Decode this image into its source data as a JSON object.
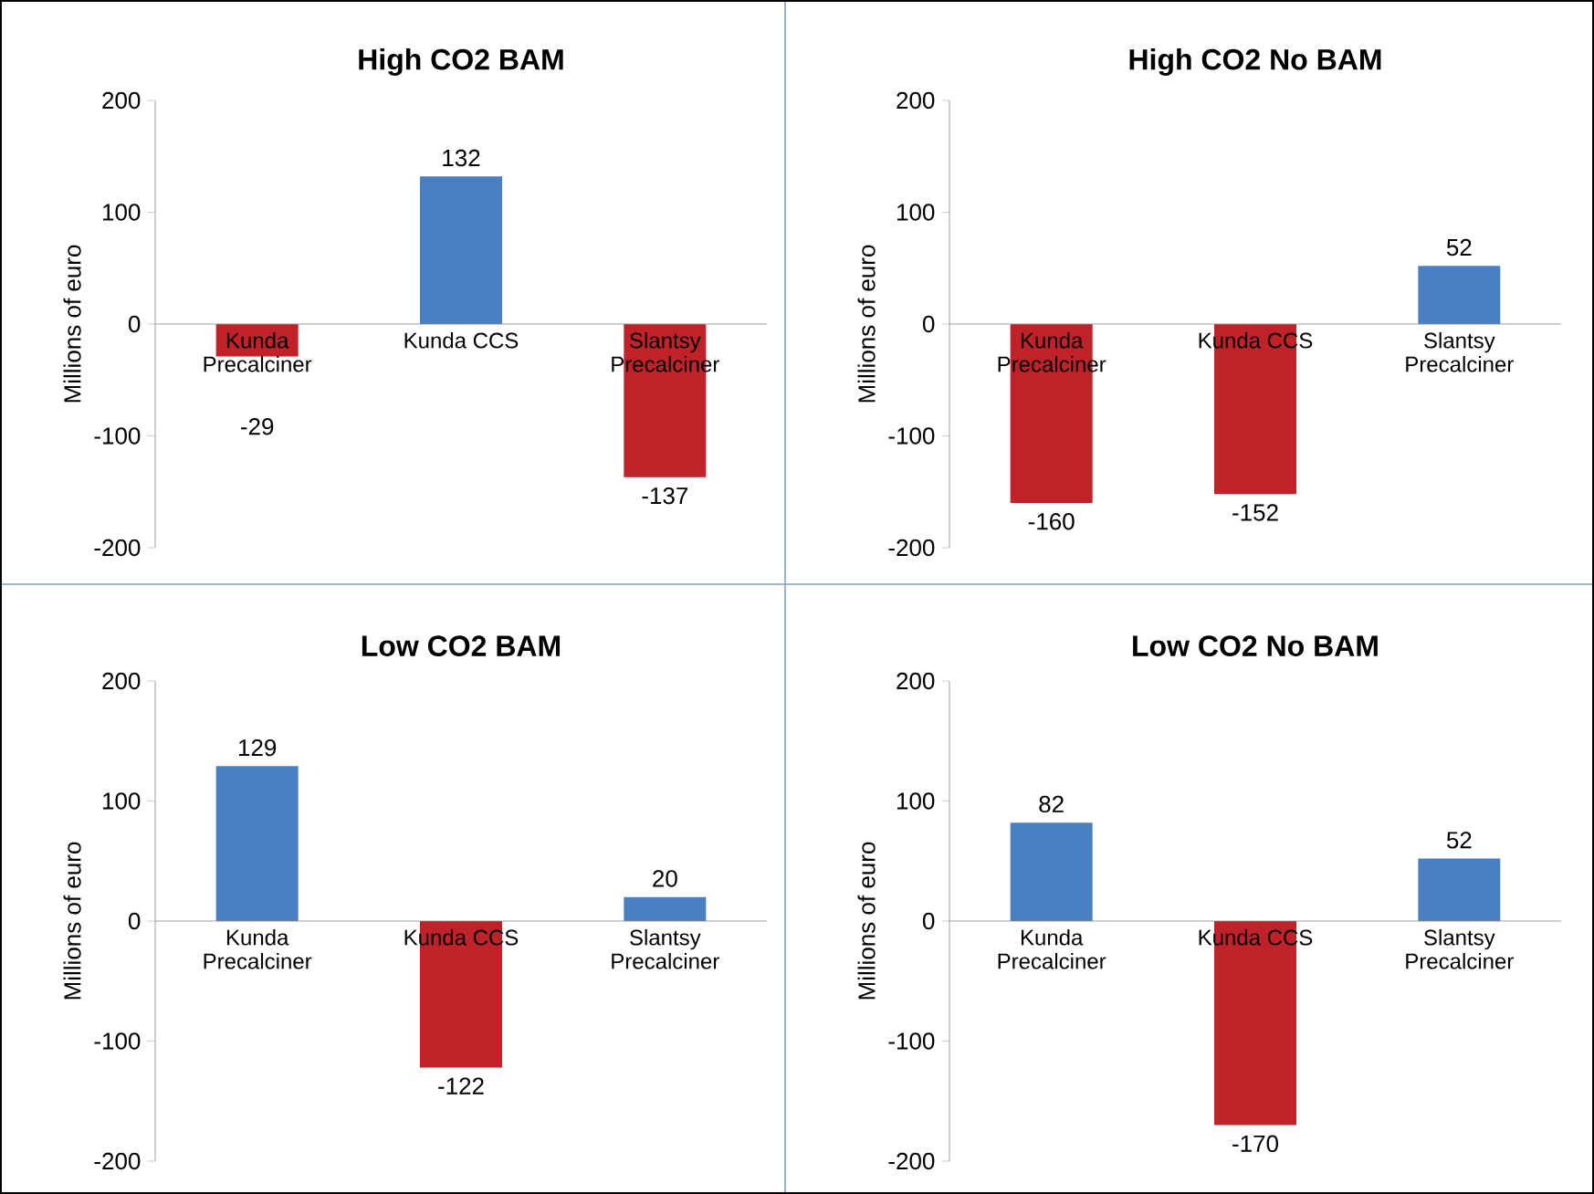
{
  "chart_data": [
    {
      "type": "bar",
      "title": "High CO2 BAM",
      "ylabel": "Millions of euro",
      "categories": [
        "Kunda Precalciner",
        "Kunda CCS",
        "Slantsy Precalciner"
      ],
      "values": [
        -29,
        132,
        -137
      ],
      "colors": [
        "#c0222a",
        "#4a7fc1",
        "#c0222a"
      ],
      "ylim": [
        -200,
        200
      ],
      "yticks": [
        -200,
        -100,
        0,
        100,
        200
      ],
      "data_labels": true
    },
    {
      "type": "bar",
      "title": "High CO2 No BAM",
      "ylabel": "Millions of euro",
      "categories": [
        "Kunda Precalciner",
        "Kunda CCS",
        "Slantsy Precalciner"
      ],
      "values": [
        -160,
        -152,
        52
      ],
      "colors": [
        "#c0222a",
        "#c0222a",
        "#4a7fc1"
      ],
      "ylim": [
        -200,
        200
      ],
      "yticks": [
        -200,
        -100,
        0,
        100,
        200
      ],
      "data_labels": true
    },
    {
      "type": "bar",
      "title": "Low CO2 BAM",
      "ylabel": "Millions of euro",
      "categories": [
        "Kunda Precalciner",
        "Kunda CCS",
        "Slantsy Precalciner"
      ],
      "values": [
        129,
        -122,
        20
      ],
      "colors": [
        "#4a7fc1",
        "#c0222a",
        "#4a7fc1"
      ],
      "ylim": [
        -200,
        200
      ],
      "yticks": [
        -200,
        -100,
        0,
        100,
        200
      ],
      "data_labels": true
    },
    {
      "type": "bar",
      "title": "Low CO2 No BAM",
      "ylabel": "Millions of euro",
      "categories": [
        "Kunda Precalciner",
        "Kunda CCS",
        "Slantsy Precalciner"
      ],
      "values": [
        82,
        -170,
        52
      ],
      "colors": [
        "#4a7fc1",
        "#c0222a",
        "#4a7fc1"
      ],
      "ylim": [
        -200,
        200
      ],
      "yticks": [
        -200,
        -100,
        0,
        100,
        200
      ],
      "data_labels": true
    }
  ]
}
